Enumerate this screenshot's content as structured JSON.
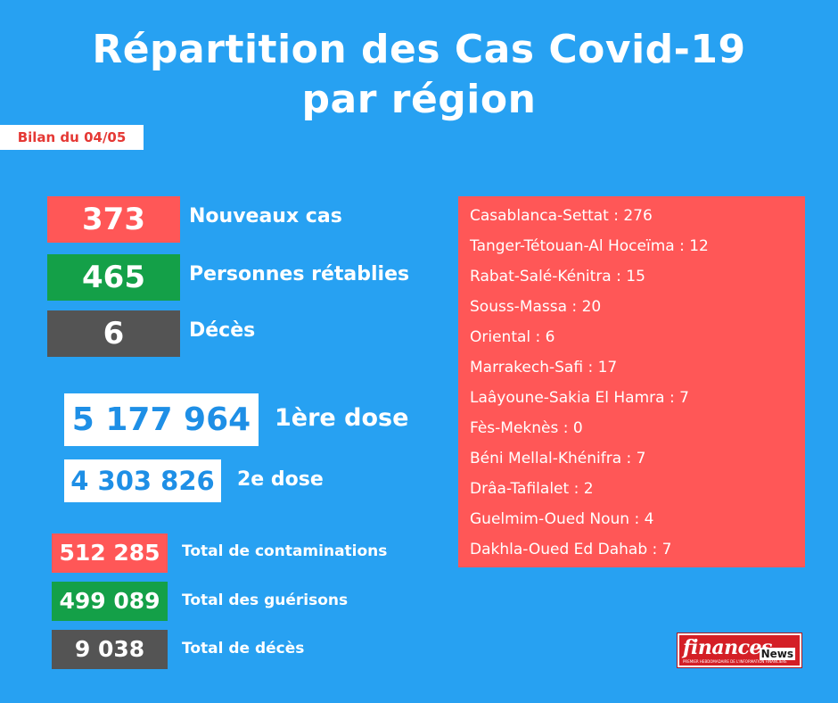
{
  "title": {
    "line1": "Répartition des Cas Covid-19",
    "line2": "par région"
  },
  "bilan": "Bilan du 04/05",
  "daily": {
    "new_cases": {
      "value": "373",
      "label": "Nouveaux cas"
    },
    "recovered": {
      "value": "465",
      "label": "Personnes rétablies"
    },
    "deaths": {
      "value": "6",
      "label": "Décès"
    }
  },
  "vaccination": {
    "dose1": {
      "value": "5 177 964",
      "label": "1ère dose"
    },
    "dose2": {
      "value": "4 303 826",
      "label": "2e dose"
    }
  },
  "totals": {
    "contaminations": {
      "value": "512 285",
      "label": "Total de contaminations"
    },
    "recoveries": {
      "value": "499 089",
      "label": "Total des guérisons"
    },
    "deaths": {
      "value": "9 038",
      "label": "Total de décès"
    }
  },
  "regions": [
    "Casablanca-Settat : 276",
    "Tanger-Tétouan-Al Hoceïma : 12",
    "Rabat-Salé-Kénitra : 15",
    "Souss-Massa : 20",
    "Oriental : 6",
    "Marrakech-Safi : 17",
    "Laâyoune-Sakia El Hamra : 7",
    "Fès-Meknès : 0",
    "Béni Mellal-Khénifra : 7",
    "Drâa-Tafilalet : 2",
    "Guelmim-Oued Noun : 4",
    "Dakhla-Oued Ed Dahab : 7"
  ],
  "logo": {
    "word": "finances",
    "news": "News",
    "tagline": "PREMIER HEBDOMADAIRE DE L'INFORMATION FINANCIÈRE"
  },
  "colors": {
    "background": "#27a1f2",
    "red": "#ff5757",
    "green": "#14a048",
    "gray": "#545454",
    "white": "#ffffff"
  }
}
